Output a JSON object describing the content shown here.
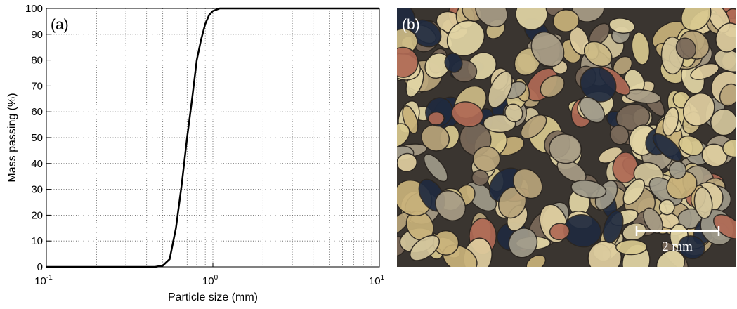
{
  "chart_data": {
    "type": "line",
    "panel_label": "(a)",
    "xlabel": "Particle size (mm)",
    "ylabel": "Mass passing (%)",
    "xscale": "log",
    "xlim": [
      0.1,
      10
    ],
    "ylim": [
      0,
      100
    ],
    "xticks": [
      {
        "value": 0.1,
        "label": "10",
        "exponent": "-1"
      },
      {
        "value": 1,
        "label": "10",
        "exponent": "0"
      },
      {
        "value": 10,
        "label": "10",
        "exponent": "1"
      }
    ],
    "xminor": [
      0.2,
      0.3,
      0.4,
      0.5,
      0.6,
      0.7,
      0.8,
      0.9,
      2,
      3,
      4,
      5,
      6,
      7,
      8,
      9
    ],
    "yticks": [
      0,
      10,
      20,
      30,
      40,
      50,
      60,
      70,
      80,
      90,
      100
    ],
    "grid": true,
    "series": [
      {
        "color": "#000000",
        "x": [
          0.1,
          0.45,
          0.5,
          0.55,
          0.6,
          0.65,
          0.7,
          0.75,
          0.8,
          0.85,
          0.9,
          0.95,
          1.0,
          1.1,
          10
        ],
        "values": [
          0,
          0,
          0.5,
          3,
          15,
          32,
          50,
          65,
          80,
          88,
          94,
          97.5,
          99,
          100,
          100
        ]
      }
    ]
  },
  "image": {
    "panel_label": "(b)",
    "scale_bar": "2 mm"
  }
}
